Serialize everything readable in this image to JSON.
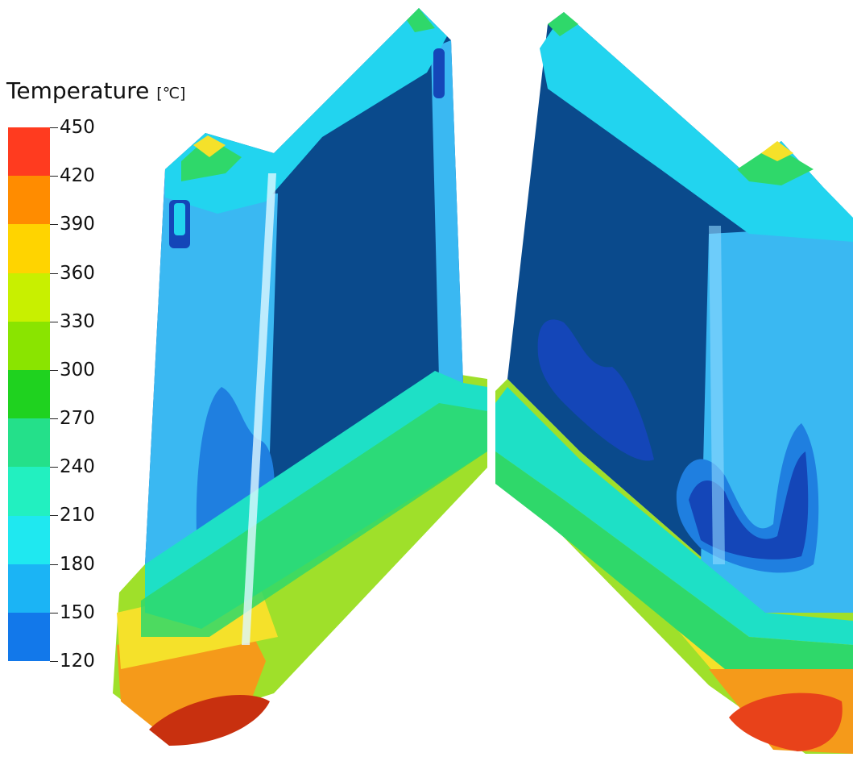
{
  "legend": {
    "title": "Temperature",
    "unit": "[℃]",
    "ticks": [
      "450",
      "420",
      "390",
      "360",
      "330",
      "300",
      "270",
      "240",
      "210",
      "180",
      "150",
      "120"
    ],
    "band_colors": [
      "#ff3b1f",
      "#ff8c00",
      "#ffd400",
      "#c8f000",
      "#8ae400",
      "#1fd21f",
      "#24e08a",
      "#22f0c0",
      "#1fe8f0",
      "#1bb4f5",
      "#1278ea"
    ]
  },
  "palette": {
    "deep_blue": "#0a4a8c",
    "dark_blue": "#1446b8",
    "blue": "#1f7fe0",
    "light_blue": "#3ab8f2",
    "cyan": "#22d4ef",
    "teal": "#1ee0c6",
    "green": "#2fd86a",
    "lime": "#9fe02a",
    "yellow": "#f5e12a",
    "orange": "#f59a1a",
    "red": "#e8421a",
    "dark_red": "#c8300f"
  }
}
